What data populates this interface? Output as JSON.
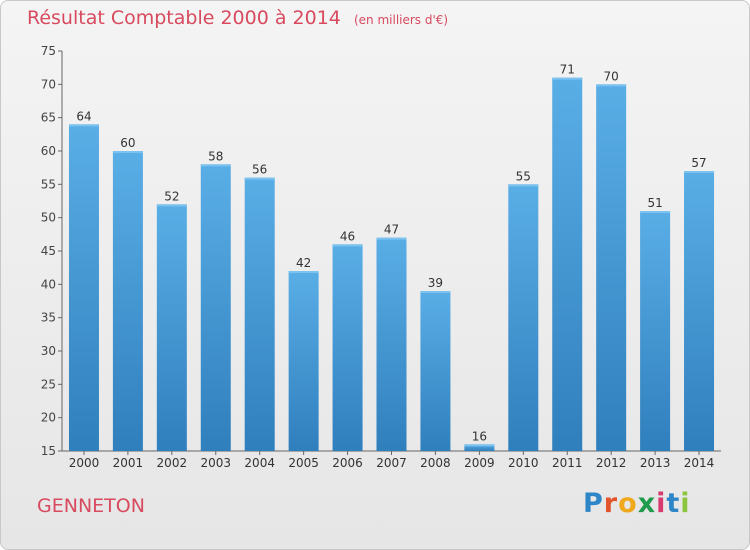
{
  "title": "Résultat Comptable 2000 à 2014",
  "unit_note": "(en milliers d'€)",
  "commune": "GENNETON",
  "brand": {
    "text": "Proxiti",
    "letters": [
      "P",
      "r",
      "o",
      "x",
      "i",
      "t",
      "i"
    ],
    "colors": [
      "#2e86c8",
      "#e3532b",
      "#f0a81c",
      "#1f9b4b",
      "#d73a6e",
      "#2e86c8",
      "#8cc63e"
    ]
  },
  "colors": {
    "bar": "#4a9fde",
    "accent": "#d84a5e",
    "axis": "#666666"
  },
  "chart_data": {
    "type": "bar",
    "categories": [
      "2000",
      "2001",
      "2002",
      "2003",
      "2004",
      "2005",
      "2006",
      "2007",
      "2008",
      "2009",
      "2010",
      "2011",
      "2012",
      "2013",
      "2014"
    ],
    "values": [
      64,
      60,
      52,
      58,
      56,
      42,
      46,
      47,
      39,
      16,
      55,
      71,
      70,
      51,
      57
    ],
    "ylim": [
      15,
      75
    ],
    "yticks": [
      15,
      20,
      25,
      30,
      35,
      40,
      45,
      50,
      55,
      60,
      65,
      70,
      75
    ],
    "grid": false,
    "data_labels": true
  }
}
